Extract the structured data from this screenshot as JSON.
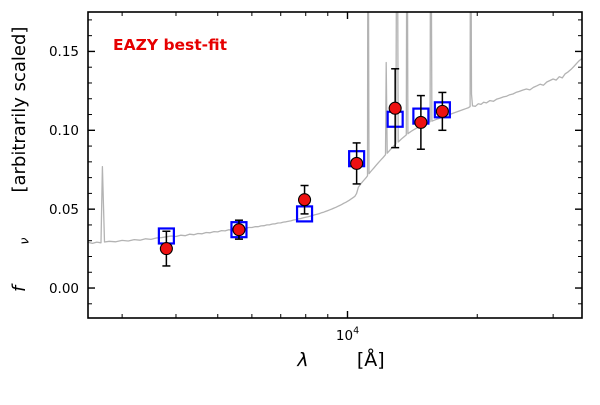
{
  "title": {
    "text": "EAZY best-fit",
    "color": "#e60000"
  },
  "axes": {
    "xlabel_lambda": "λ",
    "xlabel_rest": "[Å]",
    "ylabel_f": "f",
    "ylabel_nu": "ν",
    "ylabel_rest": "[arbitrarily scaled]"
  },
  "colors": {
    "spectrum": "#b3b3b3",
    "model_square": "#0000ff",
    "observed_point": "#ee1111",
    "error_bar": "#000000",
    "frame": "#000000"
  },
  "chart_data": {
    "type": "line",
    "title": "EAZY best-fit",
    "xlabel": "lambda [Angstrom]",
    "ylabel": "f_nu [arbitrarily scaled]",
    "xscale": "log",
    "xlim": [
      2500,
      35000
    ],
    "ylim": [
      -0.019,
      0.175
    ],
    "yticks": [
      0.0,
      0.05,
      0.1,
      0.15
    ],
    "ytick_labels": [
      "0.00",
      "0.05",
      "0.10",
      "0.15"
    ],
    "y_minor_step": 0.01,
    "xticks": [
      10000
    ],
    "xtick_base": "10",
    "xtick_exp": "4",
    "x_minor": [
      3000,
      4000,
      5000,
      6000,
      7000,
      8000,
      9000,
      20000,
      30000
    ],
    "grid": false,
    "legend": "none",
    "series": [
      {
        "name": "best-fit template spectrum",
        "type": "line",
        "color": "#b3b3b3",
        "points": [
          [
            2500,
            0.029
          ],
          [
            2560,
            0.0283
          ],
          [
            2620,
            0.0291
          ],
          [
            2680,
            0.0287
          ],
          [
            2700,
            0.077
          ],
          [
            2730,
            0.0292
          ],
          [
            2800,
            0.0296
          ],
          [
            2900,
            0.0293
          ],
          [
            3000,
            0.0302
          ],
          [
            3100,
            0.0298
          ],
          [
            3200,
            0.0307
          ],
          [
            3300,
            0.0303
          ],
          [
            3400,
            0.0312
          ],
          [
            3500,
            0.0308
          ],
          [
            3600,
            0.0317
          ],
          [
            3700,
            0.032
          ],
          [
            3800,
            0.0325
          ],
          [
            3900,
            0.033
          ],
          [
            4000,
            0.0327
          ],
          [
            4100,
            0.0335
          ],
          [
            4200,
            0.0332
          ],
          [
            4300,
            0.0341
          ],
          [
            4400,
            0.0338
          ],
          [
            4500,
            0.0346
          ],
          [
            4600,
            0.0344
          ],
          [
            4700,
            0.0352
          ],
          [
            4800,
            0.035
          ],
          [
            4900,
            0.0358
          ],
          [
            5000,
            0.0356
          ],
          [
            5100,
            0.0364
          ],
          [
            5200,
            0.0362
          ],
          [
            5300,
            0.0369
          ],
          [
            5400,
            0.0368
          ],
          [
            5500,
            0.0374
          ],
          [
            5600,
            0.0373
          ],
          [
            5700,
            0.0379
          ],
          [
            5800,
            0.0378
          ],
          [
            5900,
            0.0384
          ],
          [
            6000,
            0.0384
          ],
          [
            6100,
            0.0389
          ],
          [
            6200,
            0.0389
          ],
          [
            6300,
            0.0394
          ],
          [
            6400,
            0.0395
          ],
          [
            6500,
            0.04
          ],
          [
            6600,
            0.0401
          ],
          [
            6700,
            0.0406
          ],
          [
            6800,
            0.0407
          ],
          [
            6900,
            0.0412
          ],
          [
            7000,
            0.0413
          ],
          [
            7100,
            0.0418
          ],
          [
            7200,
            0.042
          ],
          [
            7300,
            0.0424
          ],
          [
            7400,
            0.0427
          ],
          [
            7500,
            0.0431
          ],
          [
            7600,
            0.0434
          ],
          [
            7700,
            0.0438
          ],
          [
            7800,
            0.0441
          ],
          [
            7900,
            0.0445
          ],
          [
            8000,
            0.0449
          ],
          [
            8100,
            0.0452
          ],
          [
            8200,
            0.0456
          ],
          [
            8300,
            0.046
          ],
          [
            8400,
            0.0464
          ],
          [
            8500,
            0.0468
          ],
          [
            8600,
            0.0472
          ],
          [
            8700,
            0.0477
          ],
          [
            8800,
            0.0481
          ],
          [
            8900,
            0.0486
          ],
          [
            9000,
            0.0491
          ],
          [
            9100,
            0.0496
          ],
          [
            9200,
            0.0501
          ],
          [
            9300,
            0.0507
          ],
          [
            9400,
            0.0512
          ],
          [
            9500,
            0.0518
          ],
          [
            9600,
            0.0524
          ],
          [
            9700,
            0.053
          ],
          [
            9800,
            0.0537
          ],
          [
            9900,
            0.0543
          ],
          [
            10000,
            0.055
          ],
          [
            10100,
            0.0557
          ],
          [
            10200,
            0.0565
          ],
          [
            10300,
            0.0573
          ],
          [
            10400,
            0.0581
          ],
          [
            10500,
            0.06
          ],
          [
            10600,
            0.064
          ],
          [
            10750,
            0.0662
          ],
          [
            10900,
            0.0682
          ],
          [
            11050,
            0.07
          ],
          [
            11130,
            0.0712
          ],
          [
            11160,
            0.3
          ],
          [
            11220,
            0.0725
          ],
          [
            11350,
            0.0742
          ],
          [
            11500,
            0.076
          ],
          [
            11650,
            0.0778
          ],
          [
            11800,
            0.0795
          ],
          [
            11950,
            0.0812
          ],
          [
            12100,
            0.0828
          ],
          [
            12250,
            0.0845
          ],
          [
            12300,
            0.143
          ],
          [
            12360,
            0.0855
          ],
          [
            12500,
            0.087
          ],
          [
            12650,
            0.0886
          ],
          [
            12800,
            0.09
          ],
          [
            12950,
            0.0914
          ],
          [
            13030,
            0.32
          ],
          [
            13110,
            0.0926
          ],
          [
            13250,
            0.0938
          ],
          [
            13400,
            0.095
          ],
          [
            13550,
            0.0961
          ],
          [
            13690,
            0.0971
          ],
          [
            13740,
            0.3
          ],
          [
            13810,
            0.0978
          ],
          [
            13950,
            0.0987
          ],
          [
            14100,
            0.0996
          ],
          [
            14250,
            0.1004
          ],
          [
            14400,
            0.1011
          ],
          [
            14550,
            0.1018
          ],
          [
            14700,
            0.1025
          ],
          [
            14850,
            0.1031
          ],
          [
            15000,
            0.1037
          ],
          [
            15200,
            0.1044
          ],
          [
            15400,
            0.105
          ],
          [
            15550,
            0.1054
          ],
          [
            15600,
            0.3
          ],
          [
            15700,
            0.1058
          ],
          [
            15900,
            0.1064
          ],
          [
            16100,
            0.107
          ],
          [
            16300,
            0.1075
          ],
          [
            16500,
            0.1081
          ],
          [
            16700,
            0.1086
          ],
          [
            17000,
            0.1094
          ],
          [
            17300,
            0.1101
          ],
          [
            17600,
            0.1109
          ],
          [
            17900,
            0.1116
          ],
          [
            18200,
            0.1123
          ],
          [
            18500,
            0.113
          ],
          [
            18800,
            0.1137
          ],
          [
            19100,
            0.1144
          ],
          [
            19250,
            0.115
          ],
          [
            19300,
            0.3
          ],
          [
            19400,
            0.123
          ],
          [
            19500,
            0.1155
          ],
          [
            19800,
            0.1152
          ],
          [
            20100,
            0.1168
          ],
          [
            20400,
            0.1164
          ],
          [
            20700,
            0.1178
          ],
          [
            21000,
            0.1174
          ],
          [
            21400,
            0.1188
          ],
          [
            21800,
            0.1184
          ],
          [
            22200,
            0.1198
          ],
          [
            22600,
            0.1204
          ],
          [
            23000,
            0.1212
          ],
          [
            23400,
            0.1216
          ],
          [
            23800,
            0.1226
          ],
          [
            24200,
            0.123
          ],
          [
            24600,
            0.124
          ],
          [
            25000,
            0.1246
          ],
          [
            25500,
            0.1255
          ],
          [
            26000,
            0.1262
          ],
          [
            26500,
            0.1256
          ],
          [
            27000,
            0.1272
          ],
          [
            27500,
            0.1282
          ],
          [
            28000,
            0.1292
          ],
          [
            28500,
            0.1286
          ],
          [
            29000,
            0.1306
          ],
          [
            29500,
            0.1316
          ],
          [
            30000,
            0.1325
          ],
          [
            30500,
            0.1318
          ],
          [
            31000,
            0.134
          ],
          [
            31500,
            0.1332
          ],
          [
            32000,
            0.1358
          ],
          [
            32500,
            0.137
          ],
          [
            33000,
            0.1386
          ],
          [
            33500,
            0.1404
          ],
          [
            34000,
            0.1424
          ],
          [
            34500,
            0.1442
          ],
          [
            35000,
            0.1455
          ]
        ]
      },
      {
        "name": "model photometry",
        "type": "scatter",
        "marker": "open-square",
        "color": "#0000ff",
        "x": [
          3800,
          5600,
          7950,
          10500,
          12900,
          14800,
          16600
        ],
        "y": [
          0.033,
          0.037,
          0.047,
          0.082,
          0.107,
          0.109,
          0.113
        ]
      },
      {
        "name": "observed photometry",
        "type": "scatter",
        "marker": "circle",
        "color": "#ee1111",
        "x": [
          3800,
          5600,
          7950,
          10500,
          12900,
          14800,
          16600
        ],
        "y": [
          0.025,
          0.037,
          0.056,
          0.079,
          0.114,
          0.105,
          0.112
        ],
        "yerr": [
          0.011,
          0.006,
          0.009,
          0.013,
          0.025,
          0.017,
          0.012
        ]
      }
    ]
  }
}
